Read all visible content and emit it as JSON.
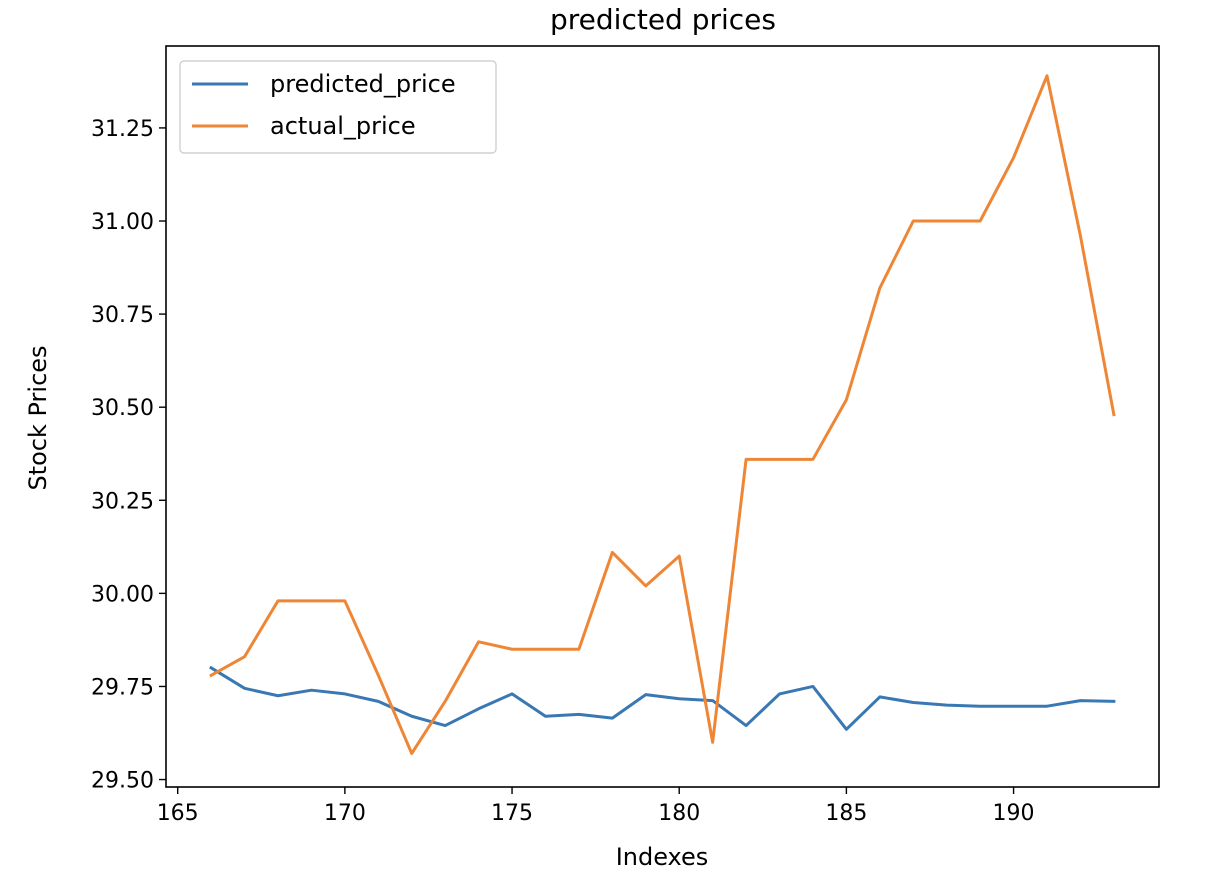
{
  "chart_data": {
    "type": "line",
    "title": "predicted prices",
    "xlabel": "Indexes",
    "ylabel": "Stock Prices",
    "xlim": [
      164.65,
      194.35
    ],
    "ylim": [
      29.48,
      31.47
    ],
    "xticks": [
      165,
      170,
      175,
      180,
      185,
      190
    ],
    "yticks": [
      29.5,
      29.75,
      30.0,
      30.25,
      30.5,
      30.75,
      31.0,
      31.25
    ],
    "grid": false,
    "legend_position": "top-left",
    "x": [
      166,
      167,
      168,
      169,
      170,
      171,
      172,
      173,
      174,
      175,
      176,
      177,
      178,
      179,
      180,
      181,
      182,
      183,
      184,
      185,
      186,
      187,
      188,
      189,
      190,
      191,
      192,
      193
    ],
    "series": [
      {
        "name": "predicted_price",
        "color": "#3a78b3",
        "values": [
          29.8,
          29.745,
          29.725,
          29.74,
          29.73,
          29.71,
          29.67,
          29.645,
          29.69,
          29.73,
          29.67,
          29.675,
          29.665,
          29.728,
          29.717,
          29.712,
          29.645,
          29.73,
          29.75,
          29.635,
          29.722,
          29.707,
          29.7,
          29.697,
          29.697,
          29.697,
          29.712,
          29.71
        ]
      },
      {
        "name": "actual_price",
        "color": "#ee8636",
        "values": [
          29.78,
          29.83,
          29.98,
          29.98,
          29.98,
          29.78,
          29.57,
          29.71,
          29.87,
          29.85,
          29.85,
          29.85,
          30.11,
          30.02,
          30.1,
          29.6,
          30.36,
          30.36,
          30.36,
          30.52,
          30.82,
          31.0,
          31.0,
          31.0,
          31.17,
          31.39,
          30.96,
          30.48
        ]
      }
    ]
  }
}
